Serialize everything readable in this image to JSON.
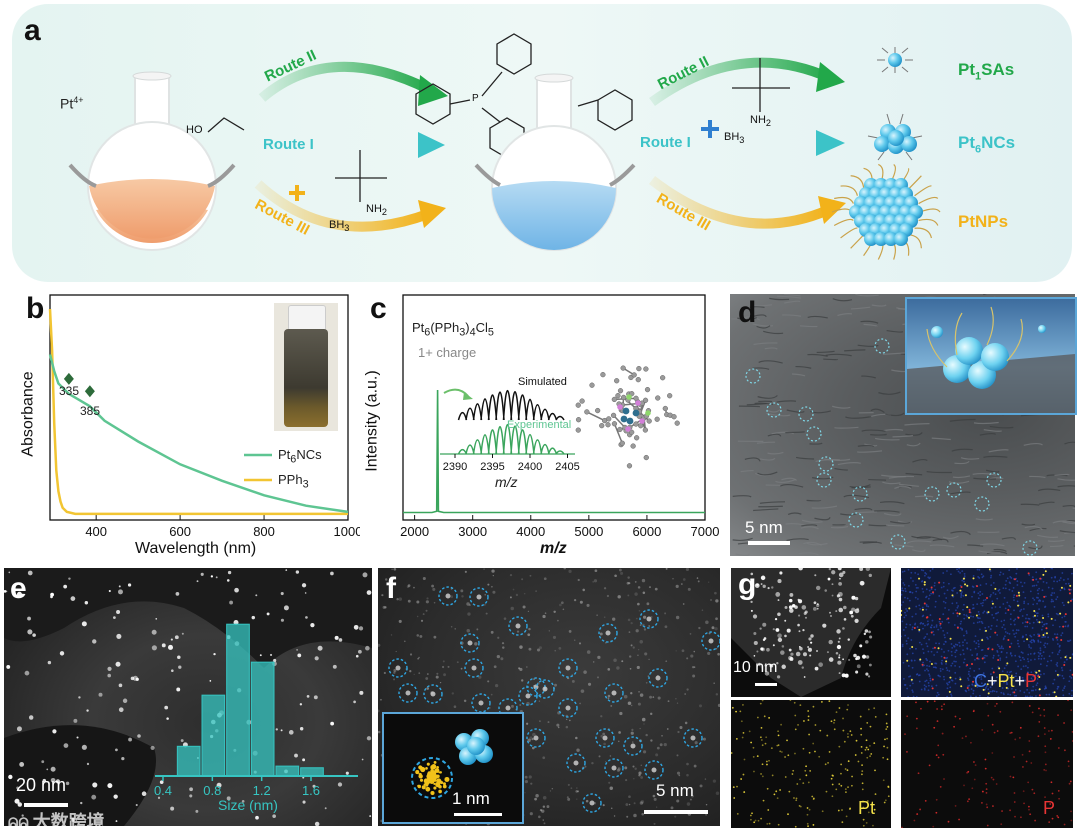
{
  "panel_a": {
    "label": "a",
    "precursor": "Pt",
    "precursor_charge": "4+",
    "solvent": "HO",
    "route2_left": "Route II",
    "route1_left": "Route I",
    "route3_left": "Route III",
    "reagent_bh3": "BH",
    "reagent_bh3_sub": "3",
    "reagent_nh2": "NH",
    "reagent_nh2_sub": "2",
    "p_atom": "P",
    "route2_right": "Route II",
    "route1_right": "Route I",
    "route3_right": "Route III",
    "right_nh2": "NH",
    "right_nh2_sub": "2",
    "right_bh3": "BH",
    "right_bh3_sub": "3",
    "product1_a": "Pt",
    "product1_sub": "1",
    "product1_b": "SAs",
    "product2_a": "Pt",
    "product2_sub": "6",
    "product2_b": "NCs",
    "product3": "PtNPs",
    "colors": {
      "route1": "#3cc3c8",
      "route2": "#22a84a",
      "route3": "#f2b21a"
    }
  },
  "panel_b": {
    "label": "b",
    "annot_335": "335",
    "annot_385": "385",
    "legend_pt6_a": "Pt",
    "legend_pt6_sub": "6",
    "legend_pt6_b": "NCs",
    "legend_pph3_a": "PPh",
    "legend_pph3_sub": "3"
  },
  "panel_c": {
    "label": "c",
    "formula_a": "Pt",
    "formula_sub1": "6",
    "formula_b": "(PPh",
    "formula_sub2": "3",
    "formula_c": ")",
    "formula_sub3": "4",
    "formula_d": "Cl",
    "formula_sub4": "5",
    "charge": "1+ charge",
    "simulated": "Simulated",
    "experimental": "Experimental",
    "inset_ticks": [
      "2390",
      "2395",
      "2400",
      "2405"
    ],
    "inset_xlabel": "m/z"
  },
  "panel_d": {
    "label": "d",
    "scale": "5 nm"
  },
  "panel_e": {
    "label": "e",
    "scale": "20 nm",
    "hist_xlabel": "Size (nm)"
  },
  "panel_f": {
    "label": "f",
    "scale": "5 nm",
    "inset_scale": "1 nm"
  },
  "panel_g": {
    "label": "g",
    "scale": "10 nm",
    "merge_c": "C",
    "merge_plus1": "+",
    "merge_pt": "Pt",
    "merge_plus2": "+",
    "merge_p": "P",
    "map_pt": "Pt",
    "map_p": "P"
  },
  "watermark": "大数跨境",
  "chart_data": [
    {
      "type": "line",
      "panel": "b",
      "xlabel": "Wavelength (nm)",
      "ylabel": "Absorbance",
      "xlim": [
        290,
        1000
      ],
      "xticks": [
        "400",
        "600",
        "800",
        "1000"
      ],
      "grid": false,
      "legend_placement": "right",
      "series": [
        {
          "name": "Pt6NCs",
          "color": "#5ec592",
          "x": [
            290,
            300,
            310,
            335,
            360,
            385,
            420,
            500,
            600,
            700,
            800,
            900,
            1000
          ],
          "y": [
            0.78,
            0.7,
            0.64,
            0.59,
            0.56,
            0.53,
            0.46,
            0.36,
            0.25,
            0.17,
            0.1,
            0.05,
            0.02
          ]
        },
        {
          "name": "PPh3",
          "color": "#f2c532",
          "x": [
            290,
            295,
            300,
            305,
            310,
            315,
            320,
            330,
            350,
            400,
            600,
            1000
          ],
          "y": [
            1.0,
            0.8,
            0.45,
            0.22,
            0.12,
            0.07,
            0.04,
            0.02,
            0.01,
            0.01,
            0.01,
            0.01
          ]
        }
      ],
      "markers": [
        {
          "x": 335,
          "label": "335"
        },
        {
          "x": 385,
          "label": "385"
        }
      ]
    },
    {
      "type": "line",
      "panel": "c",
      "xlabel": "m/z",
      "ylabel": "Intensity (a.u.)",
      "xlim": [
        1800,
        7000
      ],
      "xticks": [
        "2000",
        "3000",
        "4000",
        "5000",
        "6000",
        "7000"
      ],
      "grid": false,
      "series": [
        {
          "name": "Experimental",
          "color": "#3aa55c",
          "x": [
            1800,
            2300,
            2380,
            2395,
            2410,
            2500,
            3000,
            4000,
            5000,
            6000,
            7000
          ],
          "y": [
            0.02,
            0.02,
            0.03,
            1.0,
            0.03,
            0.02,
            0.02,
            0.02,
            0.02,
            0.02,
            0.02
          ]
        }
      ],
      "inset": {
        "xlim": [
          2388,
          2406
        ],
        "simulated": {
          "x": [
            2391,
            2392,
            2393,
            2394,
            2395,
            2396,
            2397,
            2398,
            2399,
            2400,
            2401,
            2402,
            2403,
            2404
          ],
          "y": [
            0.25,
            0.4,
            0.55,
            0.72,
            0.85,
            0.95,
            1.0,
            0.96,
            0.85,
            0.7,
            0.52,
            0.36,
            0.22,
            0.12
          ]
        },
        "experimental": {
          "x": [
            2391,
            2392,
            2393,
            2394,
            2395,
            2396,
            2397,
            2398,
            2399,
            2400,
            2401,
            2402,
            2403,
            2404
          ],
          "y": [
            0.15,
            0.3,
            0.48,
            0.65,
            0.82,
            0.93,
            1.0,
            0.95,
            0.82,
            0.66,
            0.48,
            0.32,
            0.2,
            0.1
          ]
        }
      }
    },
    {
      "type": "bar",
      "panel": "e",
      "xlabel": "Size (nm)",
      "xticks": [
        "0.4",
        "0.8",
        "1.2",
        "1.6"
      ],
      "categories": [
        "0.6",
        "0.8",
        "1.0",
        "1.2",
        "1.4",
        "1.6"
      ],
      "values": [
        18,
        49,
        92,
        69,
        6,
        5
      ],
      "color": "#36c5c2"
    }
  ]
}
